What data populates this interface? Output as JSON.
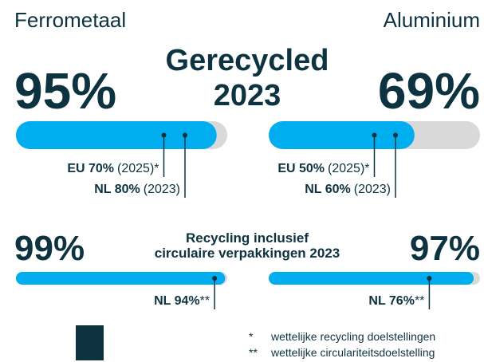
{
  "xlim": [
    0,
    100
  ],
  "headline": [
    "Gerecycled",
    "2023"
  ],
  "panels": [
    {
      "title": "Ferrometaal",
      "value": 95,
      "label": "95%",
      "targets": [
        {
          "value": 70,
          "label": "EU 70%",
          "note": "(2025)*"
        },
        {
          "value": 80,
          "label": "NL 80%",
          "note": "(2023)"
        }
      ]
    },
    {
      "title": "Aluminium",
      "value": 69,
      "label": "69%",
      "targets": [
        {
          "value": 50,
          "label": "EU 50%",
          "note": "(2025)*"
        },
        {
          "value": 60,
          "label": "NL 60%",
          "note": "(2023)"
        }
      ]
    }
  ],
  "bottom": {
    "heading": [
      "Recycling inclusief",
      "circulaire verpakkingen 2023"
    ],
    "panels": [
      {
        "value": 99,
        "label": "99%",
        "targets": [
          {
            "value": 94,
            "label": "NL 94%",
            "note": "**"
          }
        ]
      },
      {
        "value": 97,
        "label": "97%",
        "targets": [
          {
            "value": 76,
            "label": "NL 76%",
            "note": "**"
          }
        ]
      }
    ]
  },
  "legend": [
    {
      "symbol": "*",
      "text": "wettelijke recycling doelstellingen"
    },
    {
      "symbol": "**",
      "text": "wettelijke circulariteitsdoelstelling"
    }
  ]
}
